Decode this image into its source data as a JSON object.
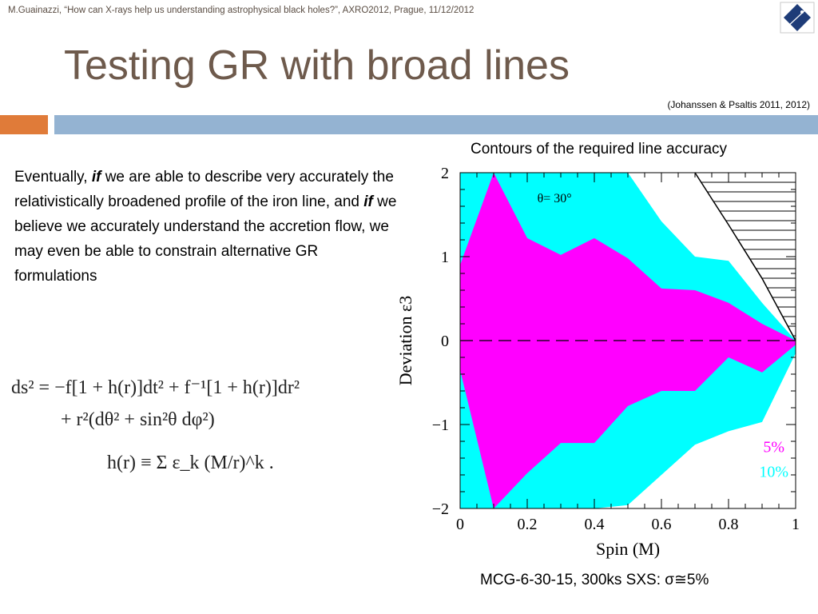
{
  "slide": {
    "header": "M.Guainazzi, “How can X-rays help us understanding astrophysical black holes?”, AXRO2012, Prague, 11/12/2012",
    "title": "Testing GR with broad lines",
    "citation": "(Johanssen & Psaltis 2011, 2012)",
    "body": {
      "seg1": "Eventually, ",
      "if1": "if",
      "seg2": " we are able to describe very accurately the relativistically broadened profile of the iron line, and ",
      "if2": "if",
      "seg3": " we believe we accurately understand the accretion flow, we may even be able to constrain alternative GR formulations"
    },
    "equation": {
      "line1": "ds² = −f[1 + h(r)]dt² + f⁻¹[1 + h(r)]dr²",
      "line2": "+ r²(dθ² + sin²θ dφ²)",
      "line3": "h(r) ≡ Σ ε_k (M/r)^k ."
    },
    "chart_title": "Contours of the required line accuracy",
    "caption": "MCG-6-30-15, 300ks SXS: σ≅5%",
    "colors": {
      "accent_orange": "#e07b39",
      "bar_blue": "#94b3d2",
      "title_brown": "#6e5a4c"
    }
  },
  "chart_data": {
    "type": "area",
    "xlabel": "Spin (M)",
    "ylabel": "Deviation ε3",
    "xlim": [
      0,
      1
    ],
    "ylim": [
      -2,
      2
    ],
    "x_ticks": [
      "0",
      "0.2",
      "0.4",
      "0.6",
      "0.8",
      "1"
    ],
    "y_ticks": [
      "−2",
      "−1",
      "0",
      "1",
      "2"
    ],
    "annotation": "θ= 30°",
    "series": [
      {
        "name": "10%",
        "color": "#00ffff",
        "x": [
          0,
          0.1,
          0.2,
          0.3,
          0.4,
          0.5,
          0.6,
          0.7,
          0.8,
          0.9,
          1.0
        ],
        "upper": [
          2.0,
          2.0,
          2.0,
          2.0,
          2.0,
          2.0,
          1.42,
          1.0,
          0.95,
          0.45,
          0.0
        ],
        "lower": [
          -2.0,
          -2.0,
          -2.0,
          -2.0,
          -2.0,
          -1.96,
          -1.6,
          -1.24,
          -1.08,
          -0.97,
          -0.15
        ]
      },
      {
        "name": "5%",
        "color": "#ff00ff",
        "x": [
          0,
          0.1,
          0.2,
          0.3,
          0.4,
          0.5,
          0.6,
          0.7,
          0.8,
          0.9,
          1.0
        ],
        "upper": [
          0.9,
          2.0,
          1.22,
          1.02,
          1.22,
          0.98,
          0.62,
          0.6,
          0.45,
          0.2,
          0.0
        ],
        "lower": [
          -0.35,
          -2.0,
          -1.58,
          -1.22,
          -1.22,
          -0.78,
          -0.6,
          -0.6,
          -0.2,
          -0.38,
          -0.05
        ]
      }
    ],
    "excluded_boundary": {
      "x": [
        0.7,
        0.75,
        0.8,
        0.85,
        0.9,
        0.95,
        1.0
      ],
      "y": [
        2.0,
        1.69,
        1.38,
        1.06,
        0.74,
        0.37,
        0.0
      ]
    },
    "reference_line": {
      "y": 0,
      "style": "dashed"
    },
    "legend": "bottom-right"
  }
}
